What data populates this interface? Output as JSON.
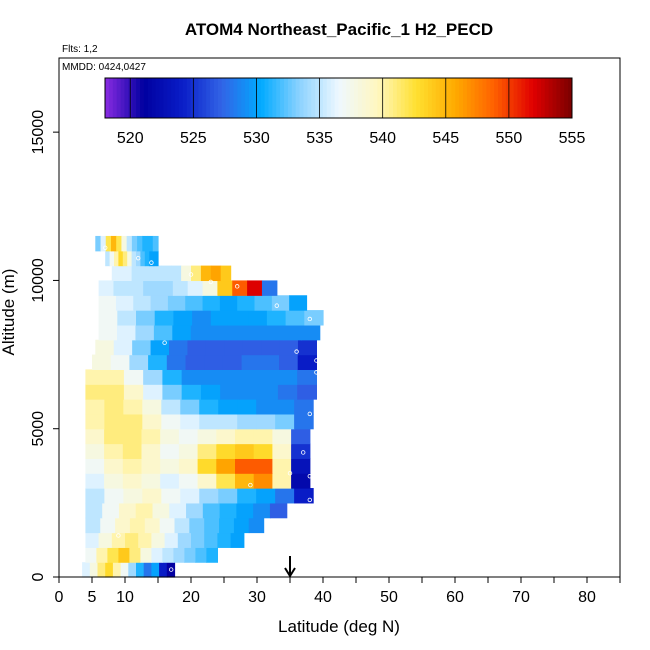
{
  "chart_data": {
    "type": "heatmap",
    "title": "ATOM4 Northeast_Pacific_1 H2_PECD",
    "flights_label": "Flts: 1,2",
    "date_label": "MMDD: 0424,0427",
    "xlabel": "Latitude (deg N)",
    "ylabel": "Altitude (m)",
    "xlim": [
      0,
      85
    ],
    "ylim": [
      0,
      17500
    ],
    "x_ticks": [
      0,
      5,
      10,
      20,
      30,
      40,
      50,
      60,
      70,
      80
    ],
    "x_tick_labels": [
      "0",
      "5",
      "10",
      "20",
      "30",
      "40",
      "50",
      "60",
      "70",
      "80"
    ],
    "y_ticks": [
      0,
      5000,
      10000,
      15000
    ],
    "y_tick_labels": [
      "0",
      "5000",
      "10000",
      "15000"
    ],
    "colorbar": {
      "min": 518,
      "max": 555,
      "ticks": [
        520,
        525,
        530,
        535,
        540,
        545,
        550,
        555
      ],
      "tick_labels": [
        "520",
        "525",
        "530",
        "535",
        "540",
        "545",
        "550",
        "555"
      ],
      "colors": [
        "#8a2be2",
        "#0000a0",
        "#0a1ec8",
        "#3264e6",
        "#00aaff",
        "#8cd2ff",
        "#eef8ff",
        "#fff7c0",
        "#ffe030",
        "#ffaa00",
        "#ff6000",
        "#e00000",
        "#7a0000"
      ]
    },
    "marker_latitude": 35,
    "altitude_bin_m": 500,
    "rows": [
      {
        "alt": 250,
        "lat_start": 3.5,
        "lat_end": 17.5,
        "values": [
          536,
          538,
          541,
          543,
          540,
          537,
          534,
          531,
          528,
          530,
          524,
          521
        ]
      },
      {
        "alt": 750,
        "lat_start": 4,
        "lat_end": 24,
        "values": [
          537,
          540,
          542,
          544,
          541,
          538,
          536,
          535,
          534,
          533,
          532,
          531
        ]
      },
      {
        "alt": 1250,
        "lat_start": 4,
        "lat_end": 28,
        "values": [
          536,
          538,
          540,
          541,
          540,
          538,
          536,
          534,
          533,
          532,
          531,
          530
        ]
      },
      {
        "alt": 1750,
        "lat_start": 4,
        "lat_end": 31,
        "values": [
          535,
          537,
          539,
          540,
          539,
          537,
          535,
          533,
          532,
          531,
          530,
          529
        ]
      },
      {
        "alt": 2250,
        "lat_start": 4,
        "lat_end": 34.5,
        "values": [
          535,
          537,
          539,
          540,
          538,
          536,
          534,
          532,
          531,
          530,
          529,
          527
        ]
      },
      {
        "alt": 2750,
        "lat_start": 4,
        "lat_end": 38.5,
        "values": [
          535,
          537,
          538,
          539,
          537,
          536,
          534,
          533,
          531,
          530,
          528,
          524
        ]
      },
      {
        "alt": 3250,
        "lat_start": 4,
        "lat_end": 38,
        "values": [
          536,
          538,
          539,
          538,
          536,
          537,
          539,
          542,
          545,
          547,
          540,
          522
        ]
      },
      {
        "alt": 3750,
        "lat_start": 4,
        "lat_end": 38,
        "values": [
          537,
          539,
          540,
          539,
          538,
          539,
          543,
          546,
          549,
          549,
          540,
          523
        ]
      },
      {
        "alt": 4250,
        "lat_start": 4,
        "lat_end": 38,
        "values": [
          538,
          540,
          541,
          539,
          537,
          538,
          541,
          543,
          544,
          543,
          539,
          525
        ]
      },
      {
        "alt": 4750,
        "lat_start": 4,
        "lat_end": 38,
        "values": [
          539,
          541,
          541,
          540,
          538,
          537,
          538,
          539,
          540,
          540,
          538,
          527
        ]
      },
      {
        "alt": 5250,
        "lat_start": 4,
        "lat_end": 38.5,
        "values": [
          540,
          541,
          541,
          539,
          537,
          536,
          535,
          535,
          534,
          534,
          533,
          528
        ]
      },
      {
        "alt": 5750,
        "lat_start": 4,
        "lat_end": 38.5,
        "values": [
          540,
          541,
          540,
          538,
          535,
          533,
          531,
          530,
          530,
          529,
          529,
          528
        ]
      },
      {
        "alt": 6250,
        "lat_start": 4,
        "lat_end": 39,
        "values": [
          541,
          541,
          539,
          536,
          533,
          531,
          530,
          529,
          529,
          529,
          528,
          527
        ]
      },
      {
        "alt": 6750,
        "lat_start": 4,
        "lat_end": 39,
        "values": [
          540,
          540,
          537,
          534,
          531,
          529,
          529,
          529,
          529,
          529,
          529,
          528
        ]
      },
      {
        "alt": 7250,
        "lat_start": 5,
        "lat_end": 39,
        "values": [
          538,
          537,
          534,
          531,
          528,
          527,
          527,
          527,
          528,
          528,
          527,
          524
        ]
      },
      {
        "alt": 7750,
        "lat_start": 5.5,
        "lat_end": 39,
        "values": [
          538,
          536,
          533,
          530,
          528,
          527,
          527,
          527,
          527,
          527,
          527,
          525
        ]
      },
      {
        "alt": 8250,
        "lat_start": 6,
        "lat_end": 39.5,
        "values": [
          537,
          536,
          534,
          532,
          530,
          529,
          529,
          529,
          529,
          529,
          529,
          529
        ]
      },
      {
        "alt": 8750,
        "lat_start": 6,
        "lat_end": 40,
        "values": [
          537,
          535,
          533,
          531,
          530,
          529,
          530,
          530,
          530,
          531,
          532,
          533
        ]
      },
      {
        "alt": 9250,
        "lat_start": 6,
        "lat_end": 37.5,
        "values": [
          537,
          536,
          535,
          534,
          533,
          532,
          531,
          530,
          531,
          532,
          533,
          530
        ]
      },
      {
        "alt": 9750,
        "lat_start": 6,
        "lat_end": 33,
        "values": [
          536,
          535,
          535,
          534,
          534,
          535,
          536,
          538,
          544,
          549,
          552,
          528
        ]
      },
      {
        "alt": 10250,
        "lat_start": 8,
        "lat_end": 26,
        "values": [
          536,
          536,
          535,
          535,
          535,
          535,
          535,
          538,
          541,
          545,
          546,
          544
        ]
      },
      {
        "alt": 10750,
        "lat_start": 7,
        "lat_end": 15,
        "values": [
          535,
          537,
          540,
          543,
          541,
          538,
          535,
          534,
          532,
          531,
          530,
          530
        ]
      },
      {
        "alt": 11250,
        "lat_start": 5.5,
        "lat_end": 15,
        "values": [
          533,
          536,
          542,
          545,
          542,
          538,
          535,
          533,
          532,
          531,
          531,
          532
        ]
      }
    ],
    "sample_points": [
      [
        5,
        11300
      ],
      [
        7,
        11100
      ],
      [
        12,
        10750
      ],
      [
        14,
        10600
      ],
      [
        17,
        10600
      ],
      [
        20,
        10200
      ],
      [
        23,
        9950
      ],
      [
        27,
        9800
      ],
      [
        33,
        9150
      ],
      [
        38,
        8700
      ],
      [
        16,
        7900
      ],
      [
        36,
        7600
      ],
      [
        39,
        7300
      ],
      [
        39,
        6900
      ],
      [
        38,
        5500
      ],
      [
        37,
        4200
      ],
      [
        35,
        3500
      ],
      [
        38,
        3400
      ],
      [
        29,
        3100
      ],
      [
        38,
        2600
      ],
      [
        9,
        1400
      ],
      [
        17,
        250
      ],
      [
        18,
        180
      ]
    ]
  }
}
